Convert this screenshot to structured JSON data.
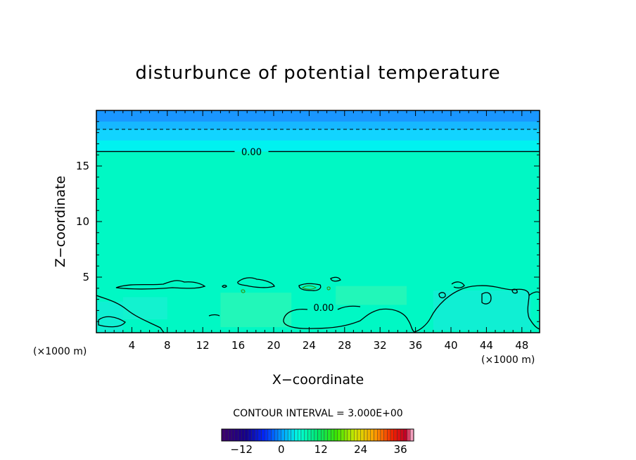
{
  "chart_data": {
    "type": "heatmap",
    "title": "disturbunce of potential temperature",
    "xlabel": "X−coordinate",
    "ylabel": "Z−coordinate",
    "x_unit": "(×1000 m)",
    "y_unit": "(×1000 m)",
    "xlim": [
      0,
      50
    ],
    "ylim": [
      0,
      20
    ],
    "x_ticks": [
      4,
      8,
      12,
      16,
      20,
      24,
      28,
      32,
      36,
      40,
      44,
      48
    ],
    "x_tick_labels": [
      "4",
      "8",
      "12",
      "16",
      "20",
      "24",
      "28",
      "32",
      "36",
      "40",
      "44",
      "48"
    ],
    "y_ticks": [
      5,
      10,
      15
    ],
    "y_tick_labels": [
      "5",
      "10",
      "15"
    ],
    "field_bands": [
      {
        "z_from": 19.0,
        "z_to": 20.0,
        "value": -6,
        "color": "#1a96ff"
      },
      {
        "z_from": 18.3,
        "z_to": 19.0,
        "value": -3,
        "color": "#16b8ff"
      },
      {
        "z_from": 17.3,
        "z_to": 18.3,
        "value": -1.5,
        "color": "#12d4ff"
      },
      {
        "z_from": 16.3,
        "z_to": 17.3,
        "value": -0.5,
        "color": "#00f2f0"
      },
      {
        "z_from": 0,
        "z_to": 16.3,
        "value": 0.5,
        "color": "#00f8c4"
      }
    ],
    "contours": [
      {
        "level": 0.0,
        "label": "0.00",
        "style": "solid",
        "z": 16.3,
        "label_x": 17.5
      },
      {
        "level": -3.0,
        "style": "dashed",
        "z": 18.3
      },
      {
        "level": 0.0,
        "label": "0.00",
        "style": "solid",
        "z": 2.2,
        "label_x": 25
      }
    ],
    "contour_interval_text": "CONTOUR INTERVAL = 3.000E+00",
    "colorbar": {
      "min": -18,
      "max": 40,
      "tick_values": [
        -12,
        0,
        12,
        24,
        36
      ],
      "tick_labels": [
        "−12",
        "0",
        "12",
        "24",
        "36"
      ]
    }
  }
}
